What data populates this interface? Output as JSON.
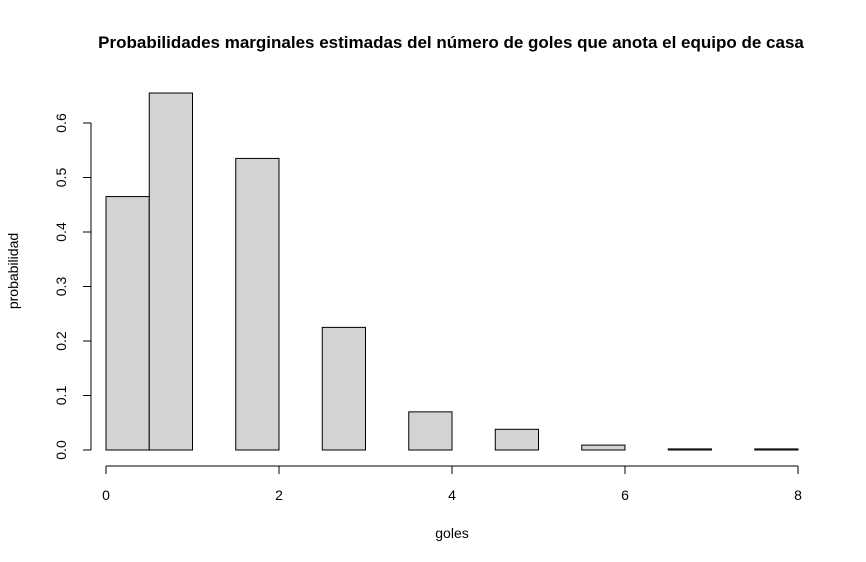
{
  "chart_data": {
    "type": "bar",
    "title": "Probabilidades marginales estimadas del número de goles que anota el equipo de casa",
    "xlabel": "goles",
    "ylabel": "probabilidad",
    "xlim": [
      0,
      8
    ],
    "ylim": [
      0,
      0.65
    ],
    "xticks": [
      0,
      2,
      4,
      6,
      8
    ],
    "yticks": [
      0.0,
      0.1,
      0.2,
      0.3,
      0.4,
      0.5,
      0.6
    ],
    "ytick_labels": [
      "0.0",
      "0.1",
      "0.2",
      "0.3",
      "0.4",
      "0.5",
      "0.6"
    ],
    "bin_edges": [
      0,
      0.5,
      1,
      1.5,
      2,
      2.5,
      3,
      3.5,
      4,
      4.5,
      5,
      5.5,
      6,
      6.5,
      7,
      7.5,
      8
    ],
    "values": [
      0.465,
      0.655,
      0,
      0.535,
      0,
      0.225,
      0,
      0.07,
      0,
      0.038,
      0,
      0.009,
      0,
      0.002,
      0,
      0.002
    ],
    "bar_color": "#d3d3d3",
    "grid": false
  }
}
